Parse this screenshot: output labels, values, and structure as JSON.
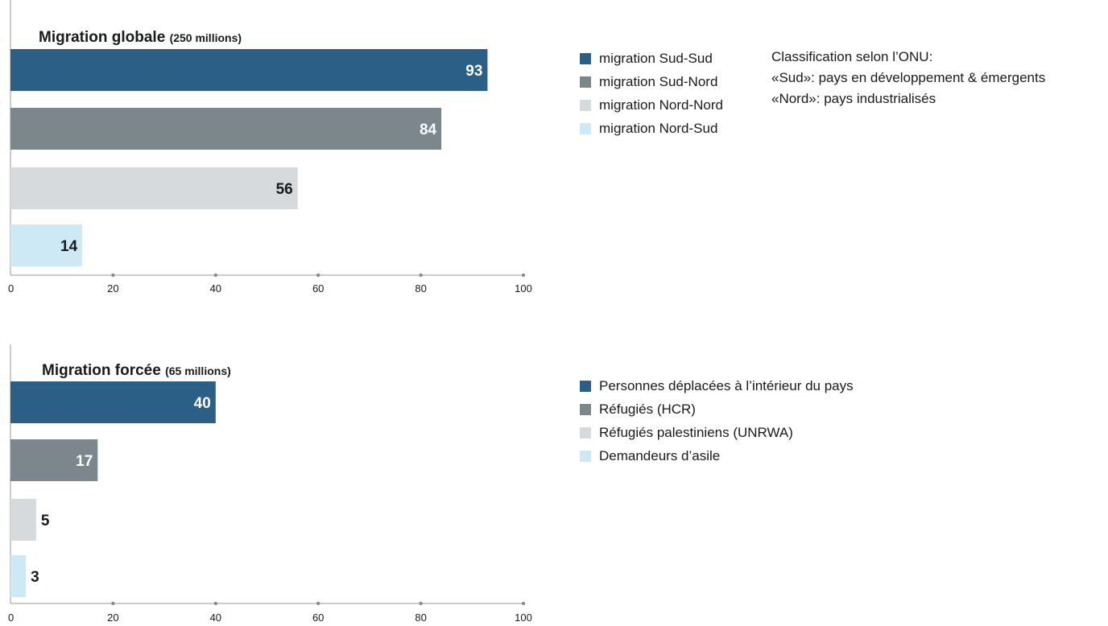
{
  "chart_data": [
    {
      "type": "bar",
      "orientation": "horizontal",
      "title": "Migration globale",
      "subtitle": "(250 millions)",
      "categories": [
        "migration Sud-Sud",
        "migration Sud-Nord",
        "migration Nord-Nord",
        "migration Nord-Sud"
      ],
      "values": [
        93,
        84,
        56,
        14
      ],
      "colors": [
        "#2b5f85",
        "#7b878d",
        "#d7dadc",
        "#cde9f6"
      ],
      "label_colors": [
        "#ffffff",
        "#ffffff",
        "#1a1a1a",
        "#1a1a1a"
      ],
      "xlim": [
        0,
        100
      ],
      "xticks": [
        0,
        20,
        40,
        60,
        80,
        100
      ],
      "legend_position": "right",
      "notes": [
        "Classification selon l’ONU:",
        "«Sud»: pays en développement & émergents",
        "«Nord»: pays industrialisés"
      ]
    },
    {
      "type": "bar",
      "orientation": "horizontal",
      "title": "Migration forcée",
      "subtitle": "(65 millions)",
      "categories": [
        "Personnes déplacées à l’intérieur du pays",
        "Réfugiés (HCR)",
        "Réfugiés palestiniens (UNRWA)",
        "Demandeurs d’asile"
      ],
      "values": [
        40,
        17,
        5,
        3
      ],
      "colors": [
        "#2b5f85",
        "#7b878d",
        "#d7dadc",
        "#cde9f6"
      ],
      "label_colors": [
        "#ffffff",
        "#ffffff",
        "#1a1a1a",
        "#1a1a1a"
      ],
      "label_inside": [
        true,
        true,
        false,
        false
      ],
      "xlim": [
        0,
        100
      ],
      "xticks": [
        0,
        20,
        40,
        60,
        80,
        100
      ],
      "legend_position": "right"
    }
  ]
}
